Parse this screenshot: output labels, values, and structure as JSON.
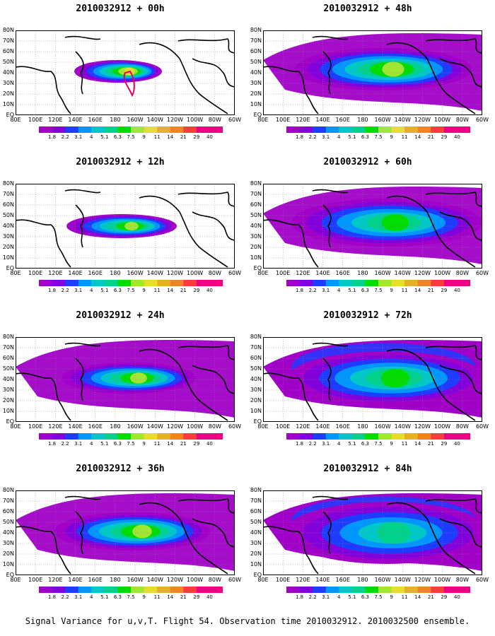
{
  "figure": {
    "caption": "Signal Variance for u,v,T. Flight 54. Observation time 2010032912. 2010032500 ensemble."
  },
  "panels": [
    {
      "title": "2010032912 + 00h",
      "lead": "00h"
    },
    {
      "title": "2010032912 + 48h",
      "lead": "48h"
    },
    {
      "title": "2010032912 + 12h",
      "lead": "12h"
    },
    {
      "title": "2010032912 + 60h",
      "lead": "60h"
    },
    {
      "title": "2010032912 + 24h",
      "lead": "24h"
    },
    {
      "title": "2010032912 + 72h",
      "lead": "72h"
    },
    {
      "title": "2010032912 + 36h",
      "lead": "36h"
    },
    {
      "title": "2010032912 + 84h",
      "lead": "84h"
    }
  ],
  "axes": {
    "x_ticks": [
      "80E",
      "100E",
      "120E",
      "140E",
      "160E",
      "180",
      "160W",
      "140W",
      "120W",
      "100W",
      "80W",
      "60W"
    ],
    "y_ticks": [
      "80N",
      "70N",
      "60N",
      "50N",
      "40N",
      "30N",
      "20N",
      "10N",
      "EQ"
    ]
  },
  "chart_data": {
    "type": "heatmap",
    "title": "Signal Variance for u,v,T. Flight 54. Observation time 2010032912. 2010032500 ensemble.",
    "xlabel": "",
    "ylabel": "",
    "x_range": [
      "80E",
      "60W"
    ],
    "y_range": [
      "EQ",
      "80N"
    ],
    "grid": true,
    "legend": "colorbar below each panel",
    "colorbar": {
      "levels": [
        "1.8",
        "2.2",
        "3.1",
        "4",
        "5.1",
        "6.3",
        "7.5",
        "9",
        "11",
        "14",
        "21",
        "29",
        "40"
      ],
      "colors": [
        "#a000c8",
        "#8200dc",
        "#1e3cff",
        "#0096ff",
        "#00c8c8",
        "#00d28c",
        "#00dc00",
        "#a0e632",
        "#e6dc32",
        "#e6af2d",
        "#f08228",
        "#fa3c3c",
        "#f00082"
      ]
    },
    "panels": [
      {
        "lead": "00h"
      },
      {
        "lead": "48h"
      },
      {
        "lead": "12h"
      },
      {
        "lead": "60h"
      },
      {
        "lead": "24h"
      },
      {
        "lead": "72h"
      },
      {
        "lead": "36h"
      },
      {
        "lead": "84h"
      }
    ]
  }
}
